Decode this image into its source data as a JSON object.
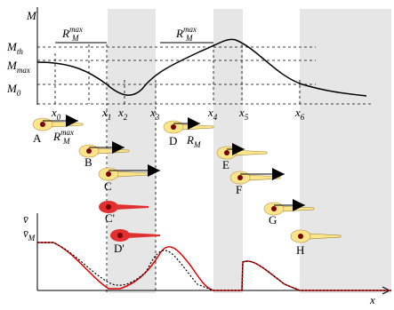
{
  "top_axis": {
    "y_label": "M",
    "levels": [
      {
        "base": "M",
        "sub": "th"
      },
      {
        "base": "M",
        "sub": "max"
      },
      {
        "base": "M",
        "sub": "0"
      }
    ],
    "ranges": [
      {
        "base": "R",
        "sub": "M",
        "sup": "max"
      },
      {
        "base": "R",
        "sub": "M",
        "sup": "max"
      }
    ],
    "x_labels": [
      {
        "base": "x",
        "sub": "0"
      },
      {
        "base": "x",
        "sub": "1"
      },
      {
        "base": "x",
        "sub": "2"
      },
      {
        "base": "x",
        "sub": "3"
      },
      {
        "base": "x",
        "sub": "4"
      },
      {
        "base": "x",
        "sub": "5"
      },
      {
        "base": "x",
        "sub": "6"
      }
    ]
  },
  "cells": [
    {
      "label": "A"
    },
    {
      "label": "B"
    },
    {
      "label": "C"
    },
    {
      "label": "C'"
    },
    {
      "label": "D"
    },
    {
      "label": "D'"
    },
    {
      "label": "E"
    },
    {
      "label": "F"
    },
    {
      "label": "G"
    },
    {
      "label": "H"
    }
  ],
  "cell_notes": [
    {
      "base": "R",
      "sub": "M",
      "sup": "max"
    },
    {
      "base": "R",
      "sub": "M"
    }
  ],
  "bottom_axis": {
    "y_labels": [
      {
        "base": "v̄"
      },
      {
        "base": "v̄",
        "sub": "M"
      }
    ],
    "x_label": "x"
  }
}
